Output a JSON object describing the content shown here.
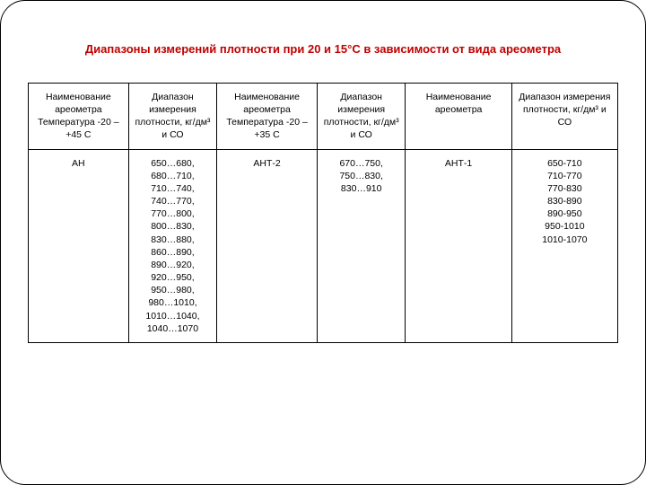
{
  "title": "Диапазоны измерений плотности при 20 и 15°С в зависимости от вида ареометра",
  "table": {
    "headers": [
      "Наименование ареометра Температура -20 –  +45 С",
      "Диапазон измерения плотности, кг/дм³ и СО",
      "Наименование ареометра Температура -20 – +35 С",
      "Диапазон измерения плотности, кг/дм³ и СО",
      "Наименование ареометра",
      "Диапазон измерения плотности, кг/дм³ и СО"
    ],
    "row": {
      "c1": "АН",
      "c2_lines": [
        "650…680,",
        "680…710,",
        "710…740,",
        "740…770,",
        "770…800,",
        "800…830,",
        "830…880,",
        "860…890,",
        "890…920,",
        "920…950,",
        "950…980,",
        "980…1010,",
        "1010…1040,",
        "1040…1070"
      ],
      "c3": "АНТ-2",
      "c4_lines": [
        "670…750,",
        "750…830,",
        "830…910"
      ],
      "c5": "АНТ-1",
      "c6_lines": [
        "650-710",
        "710-770",
        "770-830",
        "830-890",
        "890-950",
        "950-1010",
        "1010-1070"
      ]
    }
  },
  "style": {
    "title_color": "#c00000",
    "title_fontsize": 13,
    "cell_fontsize": 10.5,
    "border_color": "#000000",
    "background": "#ffffff"
  }
}
